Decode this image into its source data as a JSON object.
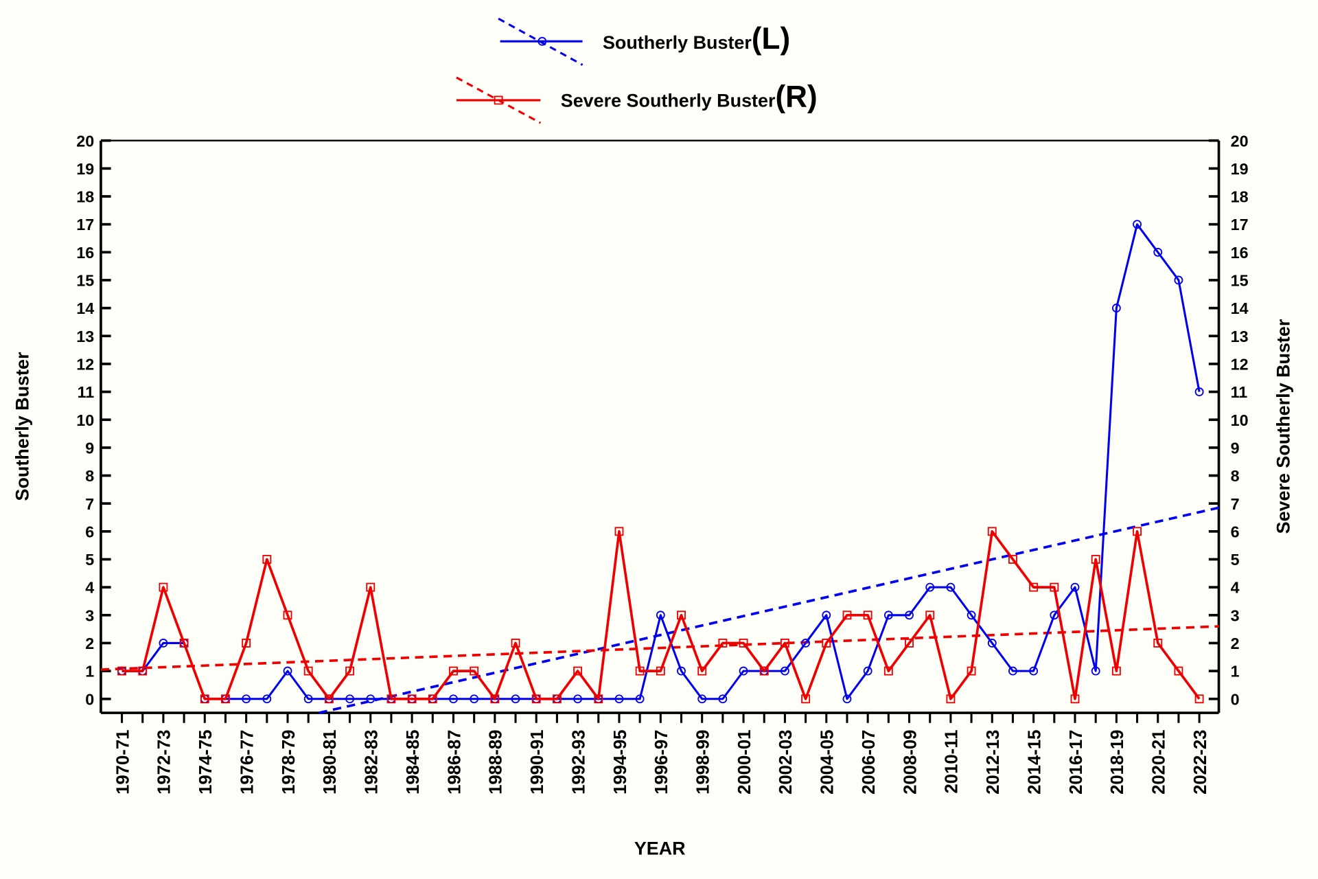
{
  "chart_data": {
    "type": "line",
    "xlabel": "YEAR",
    "ylabel_left": "Southerly Buster",
    "ylabel_right": "Severe Southerly Buster",
    "ylim": [
      -0.5,
      20
    ],
    "yticks": [
      0,
      1,
      2,
      3,
      4,
      5,
      6,
      7,
      8,
      9,
      10,
      11,
      12,
      13,
      14,
      15,
      16,
      17,
      18,
      19,
      20
    ],
    "grid": false,
    "legend_placement": "top-center",
    "categories": [
      "1970-71",
      "1971-72",
      "1972-73",
      "1973-74",
      "1974-75",
      "1975-76",
      "1976-77",
      "1977-78",
      "1978-79",
      "1979-80",
      "1980-81",
      "1981-82",
      "1982-83",
      "1983-84",
      "1984-85",
      "1985-86",
      "1986-87",
      "1987-88",
      "1988-89",
      "1989-90",
      "1990-91",
      "1991-92",
      "1992-93",
      "1993-94",
      "1994-95",
      "1995-96",
      "1996-97",
      "1997-98",
      "1998-99",
      "1999-00",
      "2000-01",
      "2001-02",
      "2002-03",
      "2003-04",
      "2004-05",
      "2005-06",
      "2006-07",
      "2007-08",
      "2008-09",
      "2009-10",
      "2010-11",
      "2011-12",
      "2012-13",
      "2013-14",
      "2014-15",
      "2015-16",
      "2016-17",
      "2017-18",
      "2018-19",
      "2019-20",
      "2020-21",
      "2021-22",
      "2022-23"
    ],
    "tick_labels_shown_every": 2,
    "series": [
      {
        "name": "Southerly Buster",
        "legend_suffix": "(L)",
        "axis": "left",
        "color": "#0000ee",
        "marker": "circle",
        "values": [
          1,
          1,
          2,
          2,
          0,
          0,
          0,
          0,
          1,
          0,
          0,
          0,
          0,
          0,
          0,
          0,
          0,
          0,
          0,
          0,
          0,
          0,
          0,
          0,
          0,
          0,
          3,
          1,
          0,
          0,
          1,
          1,
          1,
          2,
          3,
          0,
          1,
          3,
          3,
          4,
          4,
          3,
          2,
          1,
          1,
          3,
          4,
          1,
          14,
          17,
          16,
          15,
          11
        ],
        "trend": {
          "style": "dashed",
          "start": {
            "x": "1980-81",
            "y": -0.5
          },
          "end_y_at_axis": 6.85
        }
      },
      {
        "name": "Severe Southerly Buster",
        "legend_suffix": "(R)",
        "axis": "right",
        "color": "#ee0000",
        "marker": "square",
        "values": [
          1,
          1,
          4,
          2,
          0,
          0,
          2,
          5,
          3,
          1,
          0,
          1,
          4,
          0,
          0,
          0,
          1,
          1,
          0,
          2,
          0,
          0,
          1,
          0,
          6,
          1,
          1,
          3,
          1,
          2,
          2,
          1,
          2,
          0,
          2,
          3,
          3,
          1,
          2,
          3,
          0,
          1,
          6,
          5,
          4,
          4,
          0,
          5,
          1,
          6,
          2,
          1,
          0
        ],
        "trend": {
          "style": "dashed",
          "start_y_at_axis": 1.05,
          "end_y_at_axis": 2.6
        }
      }
    ]
  }
}
